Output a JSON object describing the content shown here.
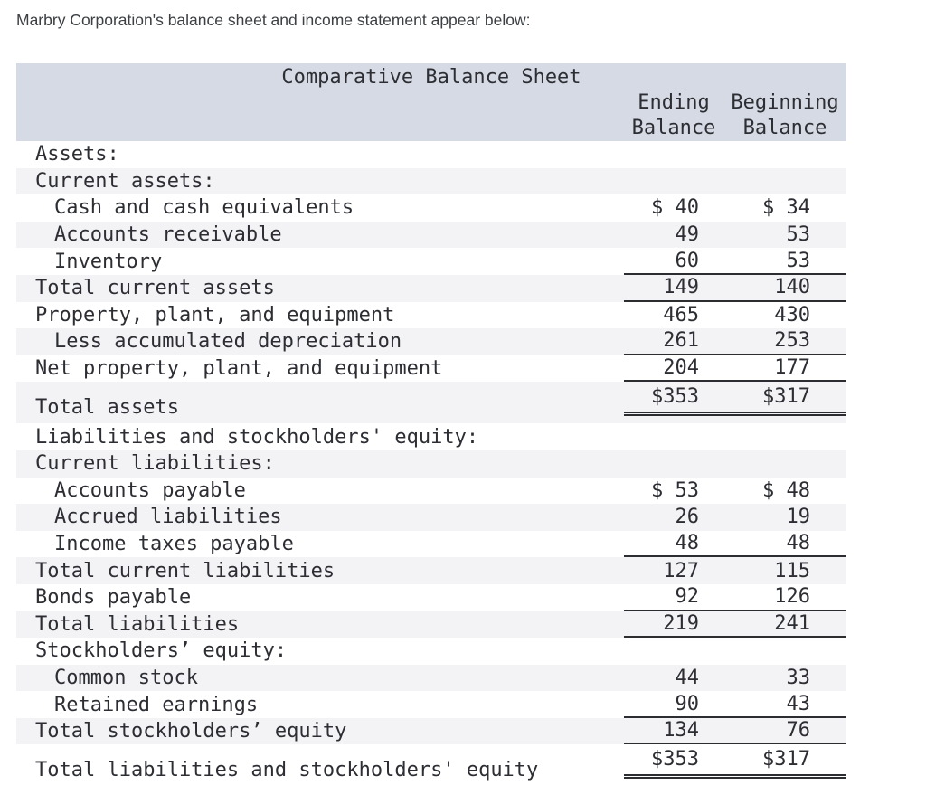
{
  "page": {
    "intro_text": "Marbry Corporation's balance sheet and income statement appear below:"
  },
  "table": {
    "title": "Comparative Balance Sheet",
    "columns": [
      {
        "line1": "Ending",
        "line2": "Balance"
      },
      {
        "line1": "Beginning",
        "line2": "Balance"
      }
    ],
    "rows": [
      {
        "label": "Assets:",
        "indent": 0,
        "ending": "",
        "beginning": "",
        "rule": "none"
      },
      {
        "label": "Current assets:",
        "indent": 0,
        "ending": "",
        "beginning": "",
        "rule": "none"
      },
      {
        "label": "Cash and cash equivalents",
        "indent": 1,
        "ending": "$ 40",
        "beginning": "$ 34",
        "rule": "none"
      },
      {
        "label": "Accounts receivable",
        "indent": 1,
        "ending": "49",
        "beginning": "53",
        "rule": "none"
      },
      {
        "label": "Inventory",
        "indent": 1,
        "ending": "60",
        "beginning": "53",
        "rule": "single"
      },
      {
        "label": "Total current assets",
        "indent": 0,
        "ending": "149",
        "beginning": "140",
        "rule": "single"
      },
      {
        "label": "Property, plant, and equipment",
        "indent": 0,
        "ending": "465",
        "beginning": "430",
        "rule": "none"
      },
      {
        "label": "Less accumulated depreciation",
        "indent": 1,
        "ending": "261",
        "beginning": "253",
        "rule": "single"
      },
      {
        "label": "Net property, plant, and equipment",
        "indent": 0,
        "ending": "204",
        "beginning": "177",
        "rule": "single"
      },
      {
        "label": "Total assets",
        "indent": 0,
        "ending": "$353",
        "beginning": "$317",
        "rule": "double",
        "tall": true
      },
      {
        "label": "Liabilities and stockholders' equity:",
        "indent": 0,
        "ending": "",
        "beginning": "",
        "rule": "none"
      },
      {
        "label": "Current liabilities:",
        "indent": 0,
        "ending": "",
        "beginning": "",
        "rule": "none"
      },
      {
        "label": "Accounts payable",
        "indent": 1,
        "ending": "$ 53",
        "beginning": "$ 48",
        "rule": "none"
      },
      {
        "label": "Accrued liabilities",
        "indent": 1,
        "ending": "26",
        "beginning": "19",
        "rule": "none"
      },
      {
        "label": "Income taxes payable",
        "indent": 1,
        "ending": "48",
        "beginning": "48",
        "rule": "single"
      },
      {
        "label": "Total current liabilities",
        "indent": 0,
        "ending": "127",
        "beginning": "115",
        "rule": "none"
      },
      {
        "label": "Bonds payable",
        "indent": 0,
        "ending": "92",
        "beginning": "126",
        "rule": "single"
      },
      {
        "label": "Total liabilities",
        "indent": 0,
        "ending": "219",
        "beginning": "241",
        "rule": "single"
      },
      {
        "label": "Stockholders’ equity:",
        "indent": 0,
        "ending": "",
        "beginning": "",
        "rule": "none"
      },
      {
        "label": "Common stock",
        "indent": 1,
        "ending": "44",
        "beginning": "33",
        "rule": "none"
      },
      {
        "label": "Retained earnings",
        "indent": 1,
        "ending": "90",
        "beginning": "43",
        "rule": "single"
      },
      {
        "label": "Total stockholders’ equity",
        "indent": 0,
        "ending": "134",
        "beginning": "76",
        "rule": "single"
      },
      {
        "label": "Total liabilities and stockholders' equity",
        "indent": 0,
        "ending": "$353",
        "beginning": "$317",
        "rule": "double",
        "tall": true
      }
    ],
    "colors": {
      "header_bg": "#d6dae4",
      "shade_row_bg": "#f3f3f5",
      "text": "#2c2e33",
      "rule": "#2b2d31"
    }
  }
}
